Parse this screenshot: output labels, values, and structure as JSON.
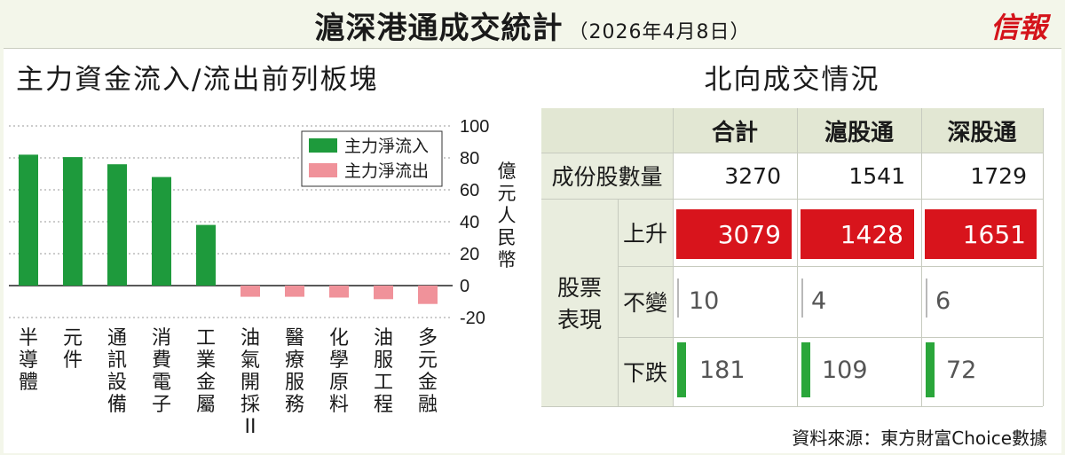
{
  "header": {
    "title": "滬深港通成交統計",
    "date": "（2026年4月8日）",
    "brand": "信報"
  },
  "left_panel": {
    "title": "主力資金流入/流出前列板塊"
  },
  "chart_data": {
    "type": "bar",
    "title": "主力資金流入/流出前列板塊",
    "ylabel": "億元人民幣",
    "ylim": [
      -20,
      100
    ],
    "yticks": [
      "100",
      "80",
      "60",
      "40",
      "20",
      "0",
      "-20"
    ],
    "categories": [
      "半導體",
      "元件",
      "通訊設備",
      "消費電子",
      "工業金屬",
      "油氣開採II",
      "醫療服務",
      "化學原料",
      "油服工程",
      "多元金融"
    ],
    "series": [
      {
        "name": "主力淨流入",
        "color": "#1e9a3c",
        "values": [
          82,
          80.5,
          76,
          68,
          38,
          null,
          null,
          null,
          null,
          null
        ]
      },
      {
        "name": "主力淨流出",
        "color": "#f0929a",
        "values": [
          null,
          null,
          null,
          null,
          null,
          -7,
          -7,
          -7.5,
          -8.5,
          -11.5
        ]
      }
    ],
    "legend": "top-right",
    "grid": true
  },
  "right_panel": {
    "title": "北向成交情況",
    "columns": [
      "合計",
      "滬股通",
      "深股通"
    ],
    "rows": {
      "components_label": "成份股數量",
      "components": [
        "3270",
        "1541",
        "1729"
      ],
      "group_label_1": "股票",
      "group_label_2": "表現",
      "up_label": "上升",
      "up": [
        "3079",
        "1428",
        "1651"
      ],
      "flat_label": "不變",
      "flat": [
        "10",
        "4",
        "6"
      ],
      "down_label": "下跌",
      "down": [
        "181",
        "109",
        "72"
      ]
    },
    "colors": {
      "up": "#d8141c",
      "down": "#2aa63a"
    }
  },
  "source": "資料來源：東方財富Choice數據"
}
